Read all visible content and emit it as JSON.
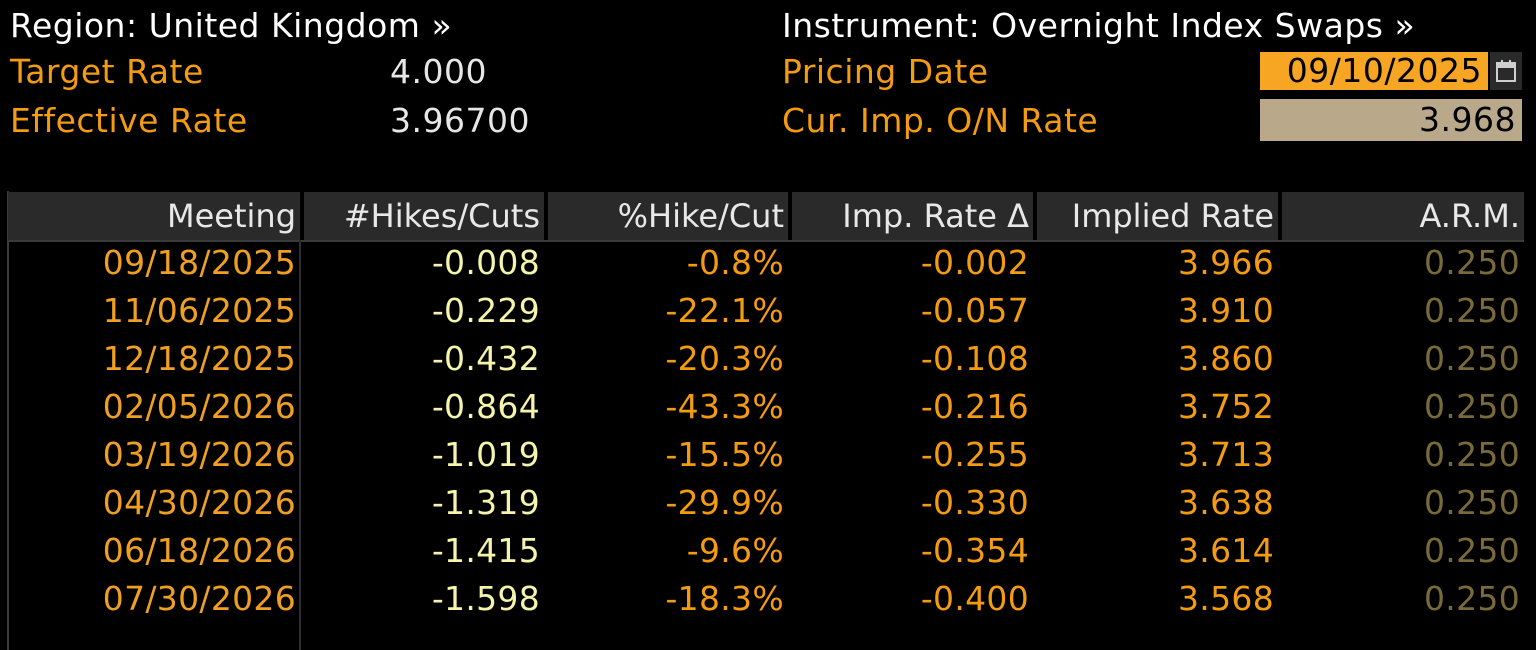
{
  "header": {
    "region_label": "Region: United Kingdom »",
    "instrument_label": "Instrument: Overnight Index Swaps »",
    "target_rate_label": "Target Rate",
    "target_rate_value": "4.000",
    "effective_rate_label": "Effective Rate",
    "effective_rate_value": "3.96700",
    "pricing_date_label": "Pricing Date",
    "pricing_date_value": "09/10/2025",
    "cur_imp_label": "Cur. Imp. O/N Rate",
    "cur_imp_value": "3.968"
  },
  "icons": {
    "calendar": "calendar-icon"
  },
  "colors": {
    "label_orange": "#f39c12",
    "date_field_bg": "#f6a623",
    "rate_field_bg": "#b9a88a",
    "hikes_color": "#f4f4aa",
    "arm_color": "#7a6a3a"
  },
  "table": {
    "columns": [
      "Meeting",
      "#Hikes/Cuts",
      "%Hike/Cut",
      "Imp. Rate Δ",
      "Implied Rate",
      "A.R.M."
    ],
    "rows": [
      {
        "meeting": "09/18/2025",
        "hikes": "-0.008",
        "pct": "-0.8%",
        "delta": "-0.002",
        "implied": "3.966",
        "arm": "0.250"
      },
      {
        "meeting": "11/06/2025",
        "hikes": "-0.229",
        "pct": "-22.1%",
        "delta": "-0.057",
        "implied": "3.910",
        "arm": "0.250"
      },
      {
        "meeting": "12/18/2025",
        "hikes": "-0.432",
        "pct": "-20.3%",
        "delta": "-0.108",
        "implied": "3.860",
        "arm": "0.250"
      },
      {
        "meeting": "02/05/2026",
        "hikes": "-0.864",
        "pct": "-43.3%",
        "delta": "-0.216",
        "implied": "3.752",
        "arm": "0.250"
      },
      {
        "meeting": "03/19/2026",
        "hikes": "-1.019",
        "pct": "-15.5%",
        "delta": "-0.255",
        "implied": "3.713",
        "arm": "0.250"
      },
      {
        "meeting": "04/30/2026",
        "hikes": "-1.319",
        "pct": "-29.9%",
        "delta": "-0.330",
        "implied": "3.638",
        "arm": "0.250"
      },
      {
        "meeting": "06/18/2026",
        "hikes": "-1.415",
        "pct": "-9.6%",
        "delta": "-0.354",
        "implied": "3.614",
        "arm": "0.250"
      },
      {
        "meeting": "07/30/2026",
        "hikes": "-1.598",
        "pct": "-18.3%",
        "delta": "-0.400",
        "implied": "3.568",
        "arm": "0.250"
      }
    ]
  }
}
